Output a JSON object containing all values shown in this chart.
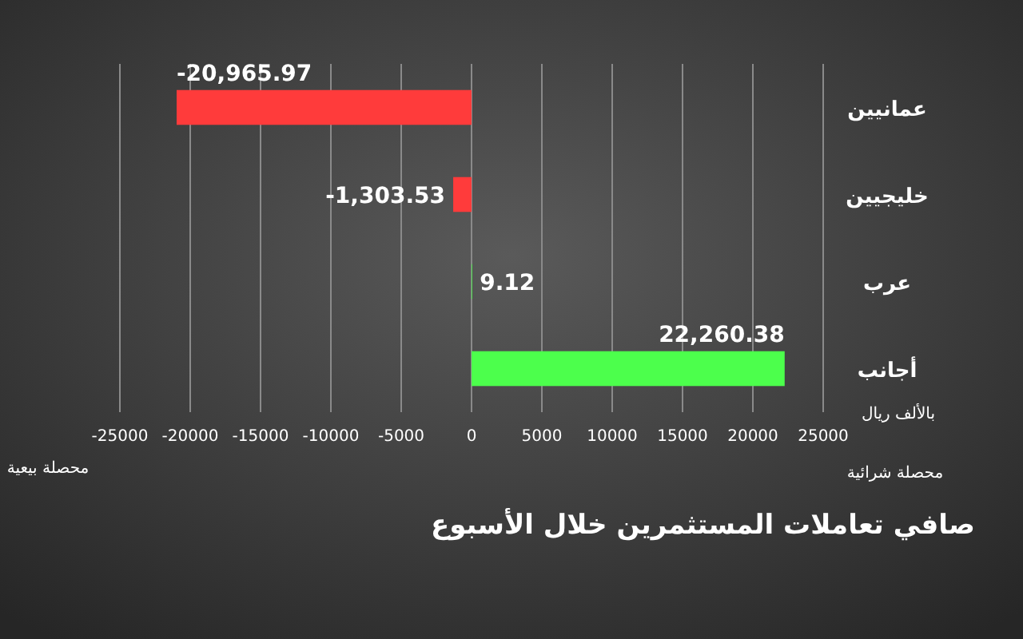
{
  "chart_data": {
    "type": "bar",
    "orientation": "horizontal",
    "title": "صافي تعاملات المستثمرين خلال الأسبوع",
    "categories": [
      "عمانيين",
      "خليجيين",
      "عرب",
      "أجانب"
    ],
    "values": [
      -20965.97,
      -1303.53,
      9.12,
      22260.38
    ],
    "value_labels": [
      "-20,965.97",
      "-1,303.53",
      "9.12",
      "22,260.38"
    ],
    "colors": [
      "#ff3b3b",
      "#ff3b3b",
      "#4cd94c",
      "#4cff4c"
    ],
    "xlim": [
      -25000,
      25000
    ],
    "xticks": [
      -25000,
      -20000,
      -15000,
      -10000,
      -5000,
      0,
      5000,
      10000,
      15000,
      20000,
      25000
    ],
    "grid": "x",
    "annotations": [
      "بالألف ريال",
      "محصلة بيعية",
      "محصلة شرائية"
    ]
  }
}
